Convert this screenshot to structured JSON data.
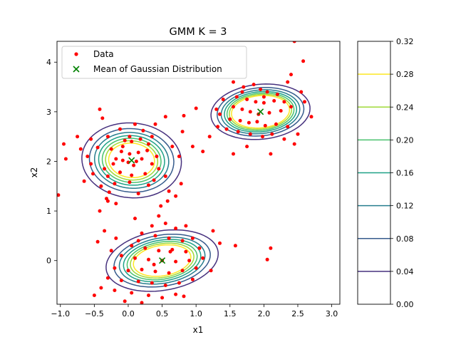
{
  "chart_data": {
    "type": "scatter",
    "title": "GMM K = 3",
    "xlabel": "x1",
    "ylabel": "x2",
    "xlim": [
      -1.05,
      3.12
    ],
    "ylim": [
      -0.88,
      4.42
    ],
    "xticks": [
      "−1.0",
      "−0.5",
      "0.0",
      "0.5",
      "1.0",
      "1.5",
      "2.0",
      "2.5",
      "3.0"
    ],
    "xtick_values": [
      -1.0,
      -0.5,
      0.0,
      0.5,
      1.0,
      1.5,
      2.0,
      2.5,
      3.0
    ],
    "yticks": [
      "0",
      "1",
      "2",
      "3",
      "4"
    ],
    "ytick_values": [
      0,
      1,
      2,
      3,
      4
    ],
    "legend": {
      "placement": "upper-left",
      "entries": [
        {
          "label": "Data",
          "marker": "dot",
          "color": "#ff0000"
        },
        {
          "label": "Mean of Gaussian Distribution",
          "marker": "x",
          "color": "#008000"
        }
      ]
    },
    "means": [
      {
        "x": 0.05,
        "y": 2.02
      },
      {
        "x": 0.5,
        "y": 0.0
      },
      {
        "x": 1.95,
        "y": 3.0
      }
    ],
    "components": [
      {
        "mean": [
          0.05,
          2.02
        ],
        "sx": 0.33,
        "sy": 0.34,
        "rho": -0.05
      },
      {
        "mean": [
          0.5,
          0.0
        ],
        "sx": 0.36,
        "sy": 0.27,
        "rho": 0.22
      },
      {
        "mean": [
          1.95,
          3.0
        ],
        "sx": 0.3,
        "sy": 0.23,
        "rho": 0.12
      }
    ],
    "contour_levels": [
      0.04,
      0.08,
      0.12,
      0.16,
      0.2,
      0.24,
      0.28
    ],
    "contour_colors": [
      "#46317e",
      "#365b8c",
      "#277e8e",
      "#1fa187",
      "#49c16d",
      "#9fd938",
      "#fde725"
    ],
    "colorbar": {
      "ticks": [
        "0.00",
        "0.04",
        "0.08",
        "0.12",
        "0.16",
        "0.20",
        "0.24",
        "0.28",
        "0.32"
      ],
      "tick_values": [
        0.0,
        0.04,
        0.08,
        0.12,
        0.16,
        0.2,
        0.24,
        0.28,
        0.32
      ],
      "range": [
        0.0,
        0.32
      ]
    },
    "grid": false,
    "points": [
      [
        -0.38,
        2.87
      ],
      [
        -0.12,
        2.65
      ],
      [
        0.1,
        2.75
      ],
      [
        0.22,
        2.62
      ],
      [
        -0.3,
        2.5
      ],
      [
        -0.05,
        2.42
      ],
      [
        0.05,
        2.4
      ],
      [
        0.3,
        2.35
      ],
      [
        0.35,
        2.5
      ],
      [
        -0.45,
        2.28
      ],
      [
        -0.25,
        2.25
      ],
      [
        -0.1,
        2.2
      ],
      [
        0.02,
        2.15
      ],
      [
        0.15,
        2.18
      ],
      [
        0.28,
        2.22
      ],
      [
        -0.18,
        2.05
      ],
      [
        -0.08,
        2.02
      ],
      [
        0.0,
        1.98
      ],
      [
        0.12,
        2.0
      ],
      [
        0.2,
        2.05
      ],
      [
        -0.6,
        2.1
      ],
      [
        -0.35,
        1.85
      ],
      [
        -0.22,
        1.95
      ],
      [
        0.08,
        1.92
      ],
      [
        0.35,
        1.95
      ],
      [
        0.45,
        1.85
      ],
      [
        -0.52,
        1.75
      ],
      [
        -0.3,
        1.7
      ],
      [
        -0.12,
        1.78
      ],
      [
        0.05,
        1.72
      ],
      [
        0.25,
        1.75
      ],
      [
        0.55,
        1.7
      ],
      [
        -0.4,
        1.5
      ],
      [
        -0.2,
        1.55
      ],
      [
        0.02,
        1.58
      ],
      [
        0.3,
        1.52
      ],
      [
        -0.28,
        1.38
      ],
      [
        0.15,
        1.35
      ],
      [
        -0.32,
        1.25
      ],
      [
        0.6,
        1.4
      ],
      [
        0.65,
        2.3
      ],
      [
        0.8,
        2.6
      ],
      [
        0.75,
        2.1
      ],
      [
        0.7,
        1.3
      ],
      [
        0.78,
        1.55
      ],
      [
        -0.7,
        2.25
      ],
      [
        -0.92,
        2.05
      ],
      [
        -0.95,
        2.35
      ],
      [
        -0.75,
        2.5
      ],
      [
        -0.55,
        1.95
      ],
      [
        0.4,
        2.75
      ],
      [
        0.55,
        2.9
      ],
      [
        -0.18,
        1.15
      ],
      [
        -0.3,
        1.2
      ],
      [
        0.58,
        1.2
      ],
      [
        0.48,
        1.1
      ],
      [
        -1.03,
        1.32
      ],
      [
        0.95,
        2.3
      ],
      [
        -0.42,
        3.05
      ],
      [
        0.02,
        2.5
      ],
      [
        -0.08,
        2.3
      ],
      [
        0.18,
        2.45
      ],
      [
        0.42,
        2.1
      ],
      [
        0.38,
        1.62
      ],
      [
        -0.55,
        2.45
      ],
      [
        -0.65,
        1.6
      ],
      [
        1.0,
        3.07
      ],
      [
        0.82,
        2.92
      ],
      [
        1.7,
        3.5
      ],
      [
        1.85,
        3.55
      ],
      [
        1.95,
        3.45
      ],
      [
        2.05,
        3.4
      ],
      [
        2.2,
        3.35
      ],
      [
        1.6,
        3.3
      ],
      [
        1.75,
        3.25
      ],
      [
        1.88,
        3.2
      ],
      [
        2.0,
        3.18
      ],
      [
        2.15,
        3.22
      ],
      [
        2.3,
        3.2
      ],
      [
        1.55,
        3.1
      ],
      [
        1.68,
        3.05
      ],
      [
        1.8,
        3.0
      ],
      [
        1.92,
        2.95
      ],
      [
        2.08,
        2.98
      ],
      [
        2.25,
        3.02
      ],
      [
        2.4,
        3.1
      ],
      [
        1.5,
        2.85
      ],
      [
        1.65,
        2.82
      ],
      [
        1.78,
        2.78
      ],
      [
        1.9,
        2.8
      ],
      [
        2.02,
        2.72
      ],
      [
        2.18,
        2.75
      ],
      [
        2.35,
        2.7
      ],
      [
        1.45,
        2.65
      ],
      [
        1.62,
        2.6
      ],
      [
        1.8,
        2.55
      ],
      [
        1.98,
        2.5
      ],
      [
        2.12,
        2.55
      ],
      [
        2.3,
        2.45
      ],
      [
        2.5,
        2.55
      ],
      [
        1.4,
        3.25
      ],
      [
        1.35,
        2.95
      ],
      [
        1.55,
        3.6
      ],
      [
        2.35,
        3.6
      ],
      [
        2.4,
        3.75
      ],
      [
        2.55,
        3.4
      ],
      [
        2.6,
        3.2
      ],
      [
        2.7,
        2.9
      ],
      [
        2.58,
        4.02
      ],
      [
        2.45,
        4.42
      ],
      [
        1.32,
        2.7
      ],
      [
        1.2,
        2.5
      ],
      [
        1.1,
        2.2
      ],
      [
        1.55,
        2.15
      ],
      [
        1.75,
        2.3
      ],
      [
        2.1,
        2.15
      ],
      [
        2.45,
        2.35
      ],
      [
        2.0,
        3.3
      ],
      [
        1.3,
        3.05
      ],
      [
        1.68,
        3.4
      ],
      [
        0.1,
        0.85
      ],
      [
        0.35,
        0.7
      ],
      [
        0.55,
        0.75
      ],
      [
        0.7,
        0.65
      ],
      [
        0.85,
        0.7
      ],
      [
        0.2,
        0.55
      ],
      [
        0.4,
        0.5
      ],
      [
        0.6,
        0.45
      ],
      [
        0.8,
        0.4
      ],
      [
        0.95,
        0.45
      ],
      [
        0.05,
        0.3
      ],
      [
        0.25,
        0.25
      ],
      [
        0.45,
        0.2
      ],
      [
        0.65,
        0.22
      ],
      [
        0.85,
        0.18
      ],
      [
        1.05,
        0.25
      ],
      [
        -0.1,
        0.1
      ],
      [
        0.1,
        0.05
      ],
      [
        0.3,
        0.02
      ],
      [
        0.5,
        0.0
      ],
      [
        0.7,
        -0.02
      ],
      [
        0.9,
        0.0
      ],
      [
        1.1,
        0.05
      ],
      [
        -0.2,
        -0.15
      ],
      [
        0.0,
        -0.2
      ],
      [
        0.2,
        -0.18
      ],
      [
        0.4,
        -0.22
      ],
      [
        0.6,
        -0.25
      ],
      [
        0.8,
        -0.2
      ],
      [
        1.0,
        -0.15
      ],
      [
        -0.3,
        -0.35
      ],
      [
        -0.1,
        -0.4
      ],
      [
        0.15,
        -0.42
      ],
      [
        0.35,
        -0.45
      ],
      [
        0.55,
        -0.5
      ],
      [
        0.75,
        -0.45
      ],
      [
        0.95,
        -0.38
      ],
      [
        -0.4,
        -0.55
      ],
      [
        -0.2,
        -0.6
      ],
      [
        0.05,
        -0.65
      ],
      [
        0.3,
        -0.7
      ],
      [
        0.5,
        -0.75
      ],
      [
        0.7,
        -0.68
      ],
      [
        -0.35,
        0.6
      ],
      [
        -0.45,
        0.38
      ],
      [
        -0.5,
        -0.7
      ],
      [
        -0.05,
        -0.82
      ],
      [
        0.2,
        -0.85
      ],
      [
        0.45,
        0.9
      ],
      [
        -0.18,
        0.45
      ],
      [
        1.25,
        0.6
      ],
      [
        1.35,
        0.35
      ],
      [
        1.58,
        0.3
      ],
      [
        2.1,
        0.25
      ],
      [
        2.05,
        0.02
      ],
      [
        1.22,
        -0.2
      ],
      [
        -0.42,
        1.0
      ],
      [
        0.82,
        -0.72
      ],
      [
        -0.25,
        0.2
      ],
      [
        0.15,
        0.4
      ],
      [
        0.62,
        0.18
      ],
      [
        0.38,
        -0.08
      ]
    ],
    "point_color": "#ff0000",
    "mean_color": "#008000"
  }
}
